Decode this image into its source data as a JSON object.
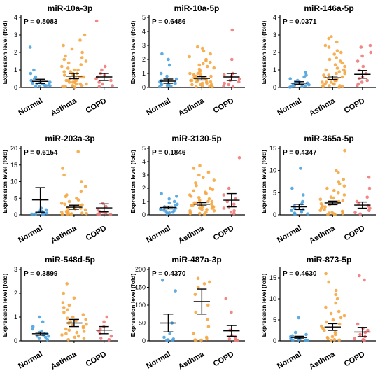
{
  "figure": {
    "ylabel": "Expression level (fold)",
    "categories": [
      "Normal",
      "Asthma",
      "COPD"
    ],
    "category_colors": [
      "#4da3df",
      "#f5a742",
      "#f07a7a"
    ]
  },
  "chart_data": [
    {
      "type": "scatter",
      "title": "miR-10a-3p",
      "p_label": "P = 0.8083",
      "ylabel": "Expression level (fold)",
      "ylim": [
        0,
        4
      ],
      "yticks": [
        "0",
        "1",
        "2",
        "3",
        "4"
      ],
      "categories": [
        "Normal",
        "Asthma",
        "COPD"
      ],
      "summary": {
        "mean": [
          0.35,
          0.65,
          0.6
        ],
        "error": [
          0.12,
          0.15,
          0.2
        ]
      },
      "points": [
        [
          2.3,
          1.0,
          0.8,
          0.6,
          0.5,
          0.4,
          0.3,
          0.25,
          0.2,
          0.15,
          0.12,
          0.1,
          0.08,
          0.05,
          0.3,
          0.2,
          0.1
        ],
        [
          3.0,
          2.7,
          2.4,
          2.2,
          2.0,
          1.8,
          1.7,
          1.6,
          1.5,
          1.4,
          1.3,
          1.2,
          1.1,
          1.0,
          1.0,
          0.9,
          0.9,
          0.8,
          0.8,
          0.7,
          0.7,
          0.6,
          0.6,
          0.5,
          0.5,
          0.5,
          0.4,
          0.4,
          0.3,
          0.3,
          0.3,
          0.2,
          0.2,
          0.2,
          0.1,
          0.1,
          0.1,
          0.05,
          0.05,
          0.02,
          0.6,
          0.4,
          0.3
        ],
        [
          3.8,
          1.2,
          1.0,
          0.8,
          0.7,
          0.6,
          0.5,
          0.4,
          0.3,
          0.2,
          0.1,
          0.05
        ]
      ]
    },
    {
      "type": "scatter",
      "title": "miR-10a-5p",
      "p_label": "P = 0.6486",
      "ylabel": "Expression level (fold)",
      "ylim": [
        0,
        5
      ],
      "yticks": [
        "0",
        "1",
        "2",
        "3",
        "4",
        "5"
      ],
      "categories": [
        "Normal",
        "Asthma",
        "COPD"
      ],
      "summary": {
        "mean": [
          0.45,
          0.65,
          0.75
        ],
        "error": [
          0.15,
          0.12,
          0.25
        ]
      },
      "points": [
        [
          2.4,
          2.0,
          1.6,
          1.0,
          0.8,
          0.6,
          0.5,
          0.4,
          0.3,
          0.2,
          0.15,
          0.1,
          0.05,
          0.3,
          0.2
        ],
        [
          2.9,
          2.8,
          2.6,
          2.4,
          2.2,
          2.0,
          1.9,
          1.8,
          1.7,
          1.6,
          1.5,
          1.4,
          1.3,
          1.2,
          1.1,
          1.0,
          1.0,
          0.9,
          0.9,
          0.8,
          0.8,
          0.7,
          0.7,
          0.6,
          0.6,
          0.5,
          0.5,
          0.4,
          0.4,
          0.3,
          0.3,
          0.2,
          0.2,
          0.2,
          0.1,
          0.1,
          0.1,
          0.05,
          0.05,
          0.5,
          0.4
        ],
        [
          4.1,
          2.0,
          1.0,
          0.9,
          0.8,
          0.6,
          0.5,
          0.4,
          0.3,
          0.2,
          0.1,
          0.05
        ]
      ]
    },
    {
      "type": "scatter",
      "title": "miR-146a-5p",
      "p_label": "P = 0.0371",
      "ylabel": "Expression level (fold)",
      "ylim": [
        0,
        4
      ],
      "yticks": [
        "0",
        "1",
        "2",
        "3",
        "4"
      ],
      "categories": [
        "Normal",
        "Asthma",
        "COPD"
      ],
      "summary": {
        "mean": [
          0.25,
          0.55,
          0.75
        ],
        "error": [
          0.08,
          0.1,
          0.22
        ]
      },
      "points": [
        [
          0.85,
          0.7,
          0.6,
          0.5,
          0.4,
          0.35,
          0.3,
          0.25,
          0.2,
          0.15,
          0.12,
          0.1,
          0.08,
          0.05,
          0.02,
          0.3,
          0.2
        ],
        [
          2.9,
          2.8,
          2.6,
          2.4,
          2.3,
          2.1,
          2.0,
          1.9,
          1.7,
          1.6,
          1.5,
          1.4,
          1.3,
          1.2,
          1.1,
          1.0,
          1.0,
          0.9,
          0.9,
          0.8,
          0.8,
          0.7,
          0.7,
          0.6,
          0.6,
          0.5,
          0.5,
          0.4,
          0.4,
          0.3,
          0.3,
          0.3,
          0.2,
          0.2,
          0.2,
          0.1,
          0.1,
          0.1,
          0.05,
          0.05,
          0.02,
          0.5,
          0.4
        ],
        [
          2.4,
          2.3,
          2.0,
          1.8,
          1.5,
          1.2,
          1.0,
          0.8,
          0.6,
          0.5,
          0.4,
          0.3,
          0.2,
          0.1
        ]
      ]
    },
    {
      "type": "scatter",
      "title": "miR-203a-3p",
      "p_label": "P = 0.6154",
      "ylabel": "Expression level (fold)",
      "ylim": [
        0,
        20
      ],
      "yticks": [
        "0",
        "5",
        "10",
        "15",
        "20"
      ],
      "categories": [
        "Normal",
        "Asthma",
        "COPD"
      ],
      "summary": {
        "mean": [
          4.5,
          2.3,
          2.1
        ],
        "error": [
          3.7,
          0.6,
          1.2
        ]
      },
      "points": [
        [
          2.0,
          1.5,
          1.2,
          1.0,
          0.8,
          0.6,
          0.5,
          0.4,
          0.3,
          0.2,
          0.1,
          0.05
        ],
        [
          19.0,
          14.0,
          12.0,
          10.0,
          8.5,
          7.0,
          6.0,
          5.5,
          5.0,
          4.5,
          4.0,
          3.5,
          3.2,
          3.0,
          2.8,
          2.5,
          2.2,
          2.0,
          1.8,
          1.5,
          1.2,
          1.0,
          0.8,
          0.6,
          0.5,
          0.4,
          0.3,
          0.2,
          0.1,
          0.05
        ],
        [
          3.5,
          2.5,
          1.5,
          1.0,
          0.8,
          0.5,
          0.3,
          0.2,
          0.1
        ]
      ]
    },
    {
      "type": "scatter",
      "title": "miR-3130-5p",
      "p_label": "P = 0.1846",
      "ylabel": "Expression level (fold)",
      "ylim": [
        0,
        5
      ],
      "yticks": [
        "0",
        "1",
        "2",
        "3",
        "4",
        "5"
      ],
      "categories": [
        "Normal",
        "Asthma",
        "COPD"
      ],
      "summary": {
        "mean": [
          0.55,
          0.8,
          1.1
        ],
        "error": [
          0.1,
          0.12,
          0.5
        ]
      },
      "points": [
        [
          1.6,
          1.4,
          1.2,
          1.0,
          0.9,
          0.8,
          0.7,
          0.6,
          0.5,
          0.45,
          0.4,
          0.35,
          0.3,
          0.25,
          0.2,
          0.15,
          0.1
        ],
        [
          3.7,
          3.5,
          3.2,
          3.0,
          2.8,
          2.6,
          2.4,
          2.2,
          2.0,
          1.9,
          1.8,
          1.7,
          1.6,
          1.5,
          1.4,
          1.3,
          1.2,
          1.1,
          1.0,
          1.0,
          0.9,
          0.9,
          0.8,
          0.8,
          0.7,
          0.7,
          0.6,
          0.6,
          0.5,
          0.5,
          0.4,
          0.4,
          0.3,
          0.3,
          0.2,
          0.2,
          0.1,
          0.1,
          0.05,
          0.6
        ],
        [
          4.3,
          2.0,
          1.5,
          1.2,
          1.0,
          0.8,
          0.6,
          0.5,
          0.3,
          0.2,
          0.1
        ]
      ]
    },
    {
      "type": "scatter",
      "title": "miR-365a-5p",
      "p_label": "P = 0.4347",
      "ylabel": "Expression level (fold)",
      "ylim": [
        0,
        15
      ],
      "yticks": [
        "0",
        "5",
        "10",
        "15"
      ],
      "categories": [
        "Normal",
        "Asthma",
        "COPD"
      ],
      "summary": {
        "mean": [
          1.8,
          2.7,
          2.2
        ],
        "error": [
          0.6,
          0.4,
          0.7
        ]
      },
      "points": [
        [
          10.5,
          6.0,
          4.5,
          3.0,
          2.5,
          2.0,
          1.5,
          1.2,
          1.0,
          0.8,
          0.6,
          0.4,
          0.2,
          0.1
        ],
        [
          14.5,
          10.0,
          9.5,
          8.0,
          7.5,
          7.0,
          6.5,
          6.0,
          5.5,
          5.0,
          4.5,
          4.0,
          3.8,
          3.5,
          3.2,
          3.0,
          2.8,
          2.5,
          2.2,
          2.0,
          1.8,
          1.5,
          1.2,
          1.0,
          0.8,
          0.6,
          0.5,
          0.4,
          0.3,
          0.2,
          0.1,
          0.05
        ],
        [
          8.5,
          6.0,
          4.0,
          3.0,
          2.5,
          2.0,
          1.5,
          1.0,
          0.5,
          0.2
        ]
      ]
    },
    {
      "type": "scatter",
      "title": "miR-548d-5p",
      "p_label": "P = 0.3899",
      "ylabel": "Expression level (fold)",
      "ylim": [
        0,
        3
      ],
      "yticks": [
        "0",
        "1",
        "2",
        "3"
      ],
      "categories": [
        "Normal",
        "Asthma",
        "COPD"
      ],
      "summary": {
        "mean": [
          0.3,
          0.75,
          0.45
        ],
        "error": [
          0.06,
          0.15,
          0.15
        ]
      },
      "points": [
        [
          1.0,
          0.8,
          0.6,
          0.5,
          0.4,
          0.35,
          0.3,
          0.25,
          0.2,
          0.15,
          0.1,
          0.05,
          0.3,
          0.2
        ],
        [
          2.4,
          2.0,
          1.8,
          1.6,
          1.5,
          1.4,
          1.3,
          1.2,
          1.1,
          1.0,
          0.95,
          0.9,
          0.85,
          0.8,
          0.75,
          0.7,
          0.65,
          0.6,
          0.55,
          0.5,
          0.45,
          0.4,
          0.35,
          0.3,
          0.25,
          0.2,
          0.15,
          0.1,
          0.05
        ],
        [
          1.0,
          0.8,
          0.6,
          0.5,
          0.4,
          0.3,
          0.2,
          0.1,
          0.05
        ]
      ]
    },
    {
      "type": "scatter",
      "title": "miR-487a-3p",
      "p_label": "P = 0.4370",
      "ylabel": "Expression level (fold)",
      "ylim": [
        0,
        200
      ],
      "yticks": [
        "0",
        "50",
        "100",
        "150",
        "200"
      ],
      "categories": [
        "Normal",
        "Asthma",
        "COPD"
      ],
      "summary": {
        "mean": [
          50,
          110,
          28
        ],
        "error": [
          25,
          35,
          15
        ]
      },
      "points": [
        [
          170,
          140,
          50,
          20,
          10,
          5,
          3,
          2,
          1
        ],
        [
          175,
          165,
          160,
          150,
          130,
          100,
          80,
          60,
          40,
          20,
          10,
          5,
          3,
          2,
          1
        ],
        [
          118,
          80,
          30,
          15,
          10,
          5,
          3,
          2,
          1
        ]
      ]
    },
    {
      "type": "scatter",
      "title": "miR-873-5p",
      "p_label": "P = 0.4630",
      "ylabel": "Expression level (fold)",
      "ylim": [
        0,
        17
      ],
      "yticks": [
        "0",
        "5",
        "10",
        "15"
      ],
      "categories": [
        "Normal",
        "Asthma",
        "COPD"
      ],
      "summary": {
        "mean": [
          0.8,
          3.3,
          2.1
        ],
        "error": [
          0.3,
          0.8,
          1.1
        ]
      },
      "points": [
        [
          5.5,
          2.0,
          1.5,
          1.2,
          1.0,
          0.8,
          0.6,
          0.5,
          0.4,
          0.3,
          0.2,
          0.15,
          0.1
        ],
        [
          16.0,
          14.0,
          12.0,
          11.0,
          10.0,
          9.0,
          8.0,
          7.0,
          6.5,
          6.0,
          5.5,
          5.0,
          4.5,
          4.0,
          3.5,
          3.0,
          2.5,
          2.0,
          1.5,
          1.0,
          0.8,
          0.5,
          0.3,
          0.2,
          0.1
        ],
        [
          15.5,
          14.5,
          4.0,
          3.0,
          2.5,
          2.0,
          1.5,
          1.0,
          0.5,
          0.3,
          0.1
        ]
      ]
    }
  ]
}
